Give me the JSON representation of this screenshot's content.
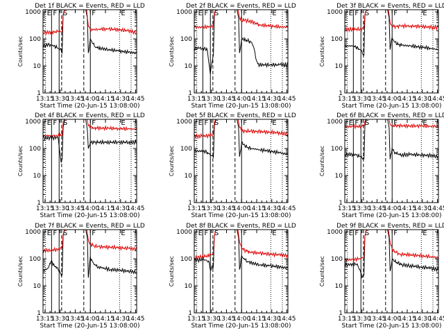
{
  "figure": {
    "colors": {
      "events": "#000000",
      "lld": "#e00000",
      "axis": "#000000",
      "background": "#ffffff"
    },
    "ylabel": "Counts/sec",
    "xlabel": "Start Time (20-Jun-15 13:08:00)",
    "xticks": [
      "13:15",
      "13:30",
      "13:45",
      "14:00",
      "14:15",
      "14:30",
      "14:45"
    ],
    "yticks": [
      "1",
      "10",
      "100",
      "1000"
    ],
    "xlim_minutes": [
      5,
      98
    ],
    "ylim_log": [
      1,
      1200
    ],
    "markers": [
      {
        "label": "E",
        "t": 7.5,
        "style": "dotted"
      },
      {
        "label": "F",
        "t": 13.5,
        "style": "solid"
      },
      {
        "label": "S",
        "t": 23.5,
        "style": "dashed"
      },
      {
        "label": "",
        "t": 21.0,
        "style": "solid"
      },
      {
        "label": "",
        "t": 45.5,
        "style": "dashed"
      },
      {
        "label": "F",
        "t": 52.0,
        "style": "solid"
      },
      {
        "label": "E",
        "t": 81.0,
        "style": "dotted"
      },
      {
        "label": "",
        "t": 92.5,
        "style": "dotted"
      }
    ]
  },
  "chart_data": [
    {
      "type": "line",
      "title": "Det 1f BLACK = Events, RED = LLD",
      "series": [
        {
          "name": "Events",
          "color": "#000000",
          "x": [
            5,
            10,
            13,
            16,
            20,
            22,
            24,
            25,
            27,
            40,
            44,
            47,
            49,
            50,
            52,
            54,
            56,
            58,
            62,
            70,
            80,
            90,
            98
          ],
          "y": [
            55,
            60,
            60,
            55,
            45,
            42,
            30,
            800,
            1500,
            1500,
            1500,
            1500,
            600,
            30,
            100,
            70,
            55,
            48,
            45,
            40,
            36,
            32,
            30
          ]
        },
        {
          "name": "LLD",
          "color": "#e00000",
          "x": [
            5,
            13,
            20,
            22,
            24,
            25,
            27,
            44,
            46,
            48,
            50,
            52,
            55,
            60,
            70,
            80,
            90,
            98
          ],
          "y": [
            170,
            175,
            185,
            185,
            200,
            700,
            1500,
            1500,
            1500,
            1500,
            300,
            220,
            220,
            230,
            230,
            220,
            200,
            165
          ]
        }
      ]
    },
    {
      "type": "line",
      "title": "Det 2f BLACK = Events, RED = LLD",
      "series": [
        {
          "name": "Events",
          "color": "#000000",
          "x": [
            5,
            10,
            13,
            16,
            18,
            20,
            21,
            22,
            24,
            25,
            27,
            44,
            47,
            49,
            50,
            52,
            54,
            58,
            62,
            64,
            66,
            68,
            70,
            80,
            90,
            98
          ],
          "y": [
            45,
            45,
            45,
            42,
            38,
            10,
            5,
            10,
            25,
            800,
            1500,
            1500,
            1500,
            600,
            30,
            90,
            95,
            85,
            75,
            50,
            20,
            12,
            11,
            11,
            11,
            11
          ]
        },
        {
          "name": "LLD",
          "color": "#e00000",
          "x": [
            5,
            13,
            20,
            22,
            24,
            25,
            27,
            44,
            46,
            48,
            50,
            52,
            55,
            60,
            66,
            70,
            80,
            90,
            98
          ],
          "y": [
            270,
            270,
            280,
            290,
            320,
            900,
            1500,
            1500,
            1500,
            1500,
            600,
            500,
            480,
            460,
            380,
            330,
            300,
            280,
            270
          ]
        }
      ]
    },
    {
      "type": "line",
      "title": "Det 3f BLACK = Events, RED = LLD",
      "series": [
        {
          "name": "Events",
          "color": "#000000",
          "x": [
            5,
            13,
            16,
            20,
            22,
            24,
            25,
            27,
            44,
            47,
            49,
            50,
            52,
            54,
            58,
            62,
            70,
            80,
            90,
            98
          ],
          "y": [
            55,
            55,
            50,
            40,
            35,
            25,
            800,
            1500,
            1500,
            1500,
            600,
            40,
            110,
            80,
            62,
            58,
            55,
            50,
            45,
            40
          ]
        },
        {
          "name": "LLD",
          "color": "#e00000",
          "x": [
            5,
            13,
            20,
            22,
            24,
            25,
            27,
            44,
            46,
            48,
            50,
            52,
            56,
            60,
            70,
            80,
            90,
            98
          ],
          "y": [
            220,
            225,
            230,
            235,
            260,
            800,
            1500,
            1500,
            1500,
            1500,
            400,
            300,
            290,
            300,
            300,
            290,
            270,
            260
          ]
        }
      ]
    },
    {
      "type": "line",
      "title": "Det 4f BLACK = Events, RED = LLD",
      "series": [
        {
          "name": "Events",
          "color": "#000000",
          "x": [
            5,
            13,
            18,
            20,
            21,
            22,
            23,
            24,
            25,
            27,
            44,
            47,
            49,
            50,
            51,
            52,
            56,
            60,
            70,
            80,
            90,
            98
          ],
          "y": [
            250,
            250,
            250,
            250,
            120,
            60,
            30,
            40,
            600,
            1500,
            1500,
            1500,
            500,
            100,
            130,
            170,
            170,
            170,
            170,
            170,
            170,
            170
          ]
        },
        {
          "name": "LLD",
          "color": "#e00000",
          "x": [
            5,
            13,
            18,
            20,
            21,
            22,
            23,
            24,
            25,
            27,
            44,
            46,
            48,
            50,
            52,
            56,
            60,
            70,
            80,
            90,
            98
          ],
          "y": [
            300,
            300,
            300,
            300,
            300,
            300,
            300,
            320,
            900,
            1500,
            1500,
            1500,
            1500,
            700,
            600,
            580,
            570,
            560,
            550,
            530,
            520
          ]
        }
      ]
    },
    {
      "type": "line",
      "title": "Det 5f BLACK = Events, RED = LLD",
      "series": [
        {
          "name": "Events",
          "color": "#000000",
          "x": [
            5,
            13,
            16,
            20,
            22,
            24,
            25,
            27,
            44,
            47,
            49,
            50,
            52,
            54,
            58,
            62,
            70,
            80,
            90,
            98
          ],
          "y": [
            80,
            80,
            75,
            65,
            55,
            45,
            700,
            1500,
            1500,
            1500,
            600,
            50,
            160,
            140,
            110,
            100,
            90,
            80,
            70,
            60
          ]
        },
        {
          "name": "LLD",
          "color": "#e00000",
          "x": [
            5,
            13,
            20,
            22,
            24,
            25,
            27,
            44,
            46,
            48,
            50,
            52,
            56,
            60,
            70,
            80,
            90,
            98
          ],
          "y": [
            280,
            290,
            300,
            320,
            340,
            900,
            1500,
            1500,
            1500,
            1500,
            600,
            450,
            430,
            440,
            420,
            400,
            380,
            330
          ]
        }
      ]
    },
    {
      "type": "line",
      "title": "Det 6f BLACK = Events, RED = LLD",
      "series": [
        {
          "name": "Events",
          "color": "#000000",
          "x": [
            5,
            13,
            16,
            20,
            22,
            24,
            25,
            27,
            44,
            47,
            49,
            50,
            52,
            54,
            58,
            62,
            70,
            80,
            90,
            98
          ],
          "y": [
            60,
            60,
            58,
            50,
            45,
            40,
            700,
            1500,
            1500,
            1500,
            600,
            40,
            100,
            75,
            60,
            58,
            60,
            58,
            55,
            50
          ]
        },
        {
          "name": "LLD",
          "color": "#e00000",
          "x": [
            5,
            13,
            20,
            22,
            24,
            25,
            27,
            44,
            46,
            48,
            50,
            52,
            56,
            60,
            70,
            80,
            90,
            98
          ],
          "y": [
            650,
            650,
            650,
            660,
            680,
            1000,
            1500,
            1500,
            1500,
            1500,
            800,
            700,
            690,
            690,
            680,
            680,
            670,
            660
          ]
        }
      ]
    },
    {
      "type": "line",
      "title": "Det 7f BLACK = Events, RED = LLD",
      "series": [
        {
          "name": "Events",
          "color": "#000000",
          "x": [
            5,
            10,
            13,
            16,
            20,
            22,
            24,
            25,
            27,
            44,
            47,
            49,
            50,
            52,
            54,
            56,
            60,
            66,
            72,
            80,
            90,
            98
          ],
          "y": [
            35,
            45,
            80,
            60,
            40,
            30,
            25,
            700,
            1500,
            1500,
            1500,
            600,
            20,
            120,
            80,
            60,
            50,
            45,
            40,
            38,
            35,
            32
          ]
        },
        {
          "name": "LLD",
          "color": "#e00000",
          "x": [
            5,
            13,
            20,
            22,
            24,
            25,
            27,
            44,
            46,
            48,
            50,
            52,
            56,
            60,
            70,
            80,
            90,
            98
          ],
          "y": [
            200,
            210,
            220,
            230,
            260,
            800,
            1500,
            1500,
            1500,
            1500,
            500,
            350,
            300,
            280,
            270,
            260,
            240,
            230
          ]
        }
      ]
    },
    {
      "type": "line",
      "title": "Det 8f BLACK = Events, RED = LLD",
      "series": [
        {
          "name": "Events",
          "color": "#000000",
          "x": [
            5,
            10,
            13,
            16,
            18,
            20,
            21,
            22,
            24,
            25,
            27,
            44,
            47,
            49,
            50,
            52,
            54,
            58,
            62,
            70,
            80,
            90,
            98
          ],
          "y": [
            90,
            90,
            95,
            90,
            80,
            70,
            40,
            45,
            50,
            700,
            1500,
            1500,
            1500,
            600,
            40,
            130,
            100,
            80,
            70,
            60,
            55,
            50,
            45
          ]
        },
        {
          "name": "LLD",
          "color": "#e00000",
          "x": [
            5,
            13,
            20,
            22,
            24,
            25,
            27,
            44,
            46,
            48,
            50,
            52,
            56,
            60,
            70,
            80,
            90,
            98
          ],
          "y": [
            110,
            120,
            130,
            140,
            170,
            700,
            1500,
            1500,
            1500,
            1500,
            400,
            250,
            200,
            180,
            160,
            150,
            140,
            130
          ]
        }
      ]
    },
    {
      "type": "line",
      "title": "Det 9f BLACK = Events, RED = LLD",
      "series": [
        {
          "name": "Events",
          "color": "#000000",
          "x": [
            5,
            10,
            13,
            16,
            18,
            20,
            21,
            22,
            24,
            25,
            27,
            44,
            47,
            49,
            50,
            52,
            54,
            58,
            62,
            70,
            80,
            90,
            98
          ],
          "y": [
            60,
            60,
            65,
            60,
            55,
            40,
            30,
            20,
            25,
            700,
            1500,
            1500,
            1500,
            600,
            35,
            90,
            80,
            70,
            60,
            55,
            50,
            45,
            40
          ]
        },
        {
          "name": "LLD",
          "color": "#e00000",
          "x": [
            5,
            13,
            20,
            22,
            24,
            25,
            27,
            44,
            46,
            48,
            50,
            52,
            56,
            60,
            70,
            80,
            90,
            98
          ],
          "y": [
            90,
            95,
            100,
            110,
            130,
            700,
            1500,
            1500,
            1500,
            1500,
            400,
            220,
            170,
            150,
            140,
            130,
            120,
            110
          ]
        }
      ]
    }
  ]
}
